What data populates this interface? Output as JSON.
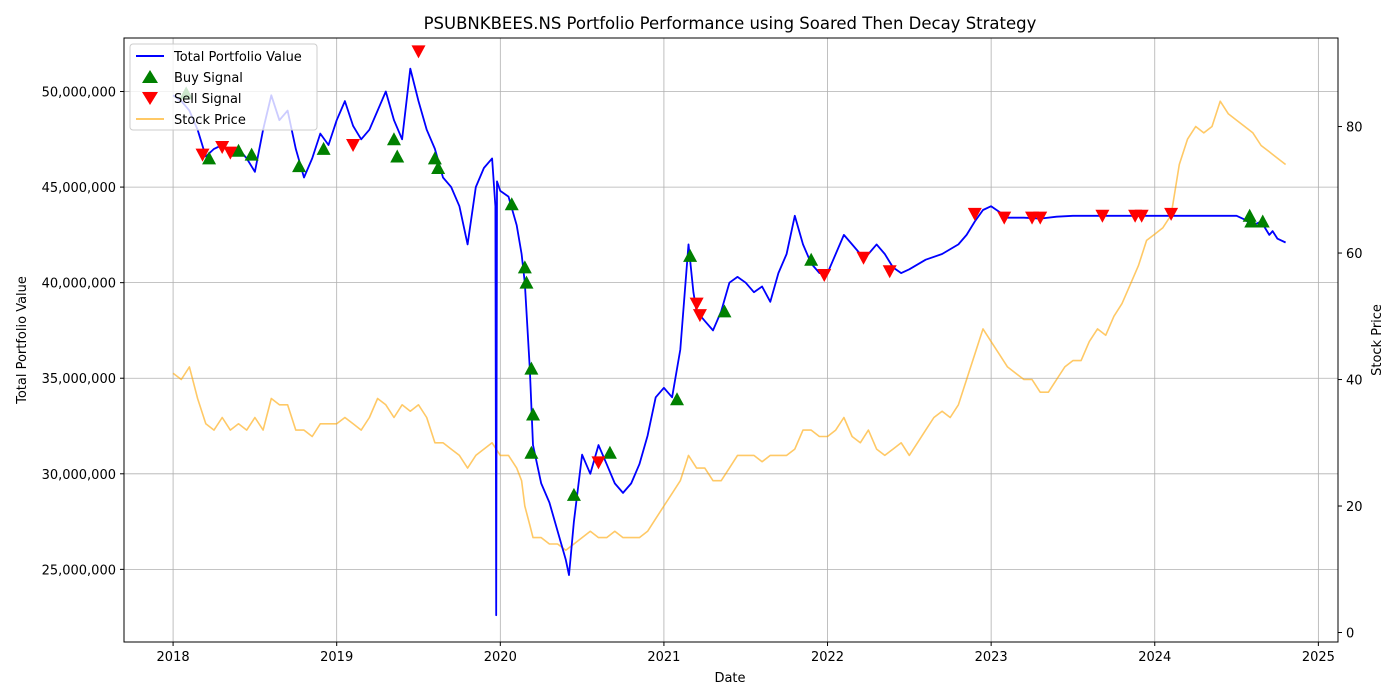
{
  "chart_data": {
    "type": "line",
    "title": "PSUBNKBEES.NS Portfolio Performance using Soared Then Decay Strategy",
    "xlabel": "Date",
    "ylabel_left": "Total Portfolio Value",
    "ylabel_right": "Stock Price",
    "x_ticks": [
      "2018",
      "2019",
      "2020",
      "2021",
      "2022",
      "2023",
      "2024",
      "2025"
    ],
    "x_range": [
      2017.7,
      2025.12
    ],
    "y_left_range": [
      21200000,
      52800000
    ],
    "y_left_ticks": [
      25000000,
      30000000,
      35000000,
      40000000,
      45000000,
      50000000
    ],
    "y_left_tick_labels": [
      "25,000,000",
      "30,000,000",
      "35,000,000",
      "40,000,000",
      "45,000,000",
      "50,000,000"
    ],
    "y_right_range": [
      -1.5,
      94
    ],
    "y_right_ticks": [
      0,
      20,
      40,
      60,
      80
    ],
    "y_right_tick_labels": [
      "0",
      "20",
      "40",
      "60",
      "80"
    ],
    "grid": true,
    "legend_position": "top-left",
    "legend": [
      {
        "label": "Total Portfolio Value",
        "kind": "line",
        "color": "#0000ff"
      },
      {
        "label": "Buy Signal",
        "kind": "triangle-up",
        "color": "#008000"
      },
      {
        "label": "Sell Signal",
        "kind": "triangle-down",
        "color": "#ff0000"
      },
      {
        "label": "Stock Price",
        "kind": "line",
        "color": "#ffa500"
      }
    ],
    "series": [
      {
        "name": "Total Portfolio Value",
        "axis": "left",
        "color": "#0000ff",
        "x": [
          2018.0,
          2018.05,
          2018.1,
          2018.15,
          2018.2,
          2018.25,
          2018.3,
          2018.35,
          2018.4,
          2018.45,
          2018.5,
          2018.55,
          2018.6,
          2018.65,
          2018.7,
          2018.75,
          2018.8,
          2018.85,
          2018.9,
          2018.95,
          2019.0,
          2019.05,
          2019.1,
          2019.15,
          2019.2,
          2019.25,
          2019.3,
          2019.35,
          2019.4,
          2019.45,
          2019.5,
          2019.55,
          2019.6,
          2019.65,
          2019.7,
          2019.75,
          2019.8,
          2019.85,
          2019.9,
          2019.95,
          2019.97,
          2019.975,
          2019.98,
          2020.0,
          2020.05,
          2020.1,
          2020.13,
          2020.15,
          2020.18,
          2020.2,
          2020.25,
          2020.3,
          2020.35,
          2020.4,
          2020.42,
          2020.45,
          2020.5,
          2020.55,
          2020.6,
          2020.65,
          2020.7,
          2020.75,
          2020.8,
          2020.85,
          2020.9,
          2020.95,
          2021.0,
          2021.05,
          2021.1,
          2021.15,
          2021.18,
          2021.2,
          2021.25,
          2021.3,
          2021.35,
          2021.4,
          2021.45,
          2021.5,
          2021.55,
          2021.6,
          2021.65,
          2021.7,
          2021.75,
          2021.8,
          2021.85,
          2021.9,
          2021.95,
          2022.0,
          2022.05,
          2022.1,
          2022.15,
          2022.2,
          2022.25,
          2022.3,
          2022.35,
          2022.4,
          2022.45,
          2022.5,
          2022.6,
          2022.7,
          2022.8,
          2022.85,
          2022.9,
          2022.95,
          2023.0,
          2023.05,
          2023.1,
          2023.2,
          2023.3,
          2023.4,
          2023.5,
          2023.6,
          2023.7,
          2023.8,
          2023.9,
          2024.0,
          2024.1,
          2024.2,
          2024.3,
          2024.4,
          2024.5,
          2024.55,
          2024.6,
          2024.65,
          2024.7,
          2024.72,
          2024.75,
          2024.8
        ],
        "values": [
          49800000,
          49500000,
          49000000,
          48000000,
          46600000,
          47000000,
          47200000,
          46800000,
          47000000,
          46500000,
          45800000,
          48000000,
          49800000,
          48500000,
          49000000,
          47000000,
          45500000,
          46500000,
          47800000,
          47200000,
          48500000,
          49500000,
          48200000,
          47500000,
          48000000,
          49000000,
          50000000,
          48500000,
          47500000,
          51200000,
          49500000,
          48000000,
          47000000,
          45500000,
          45000000,
          44000000,
          42000000,
          45000000,
          46000000,
          46500000,
          44000000,
          22600000,
          45300000,
          44800000,
          44500000,
          43000000,
          41500000,
          40000000,
          35500000,
          31500000,
          29500000,
          28500000,
          27000000,
          25500000,
          24700000,
          27500000,
          31000000,
          30000000,
          31500000,
          30500000,
          29500000,
          29000000,
          29500000,
          30500000,
          32000000,
          34000000,
          34500000,
          34000000,
          36500000,
          42000000,
          39500000,
          38500000,
          38000000,
          37500000,
          38500000,
          40000000,
          40300000,
          40000000,
          39500000,
          39800000,
          39000000,
          40500000,
          41500000,
          43500000,
          42000000,
          41000000,
          40500000,
          40500000,
          41500000,
          42500000,
          42000000,
          41500000,
          41500000,
          42000000,
          41500000,
          40800000,
          40500000,
          40700000,
          41200000,
          41500000,
          42000000,
          42500000,
          43200000,
          43800000,
          44000000,
          43700000,
          43400000,
          43400000,
          43350000,
          43450000,
          43500000,
          43500000,
          43500000,
          43500000,
          43500000,
          43500000,
          43500000,
          43500000,
          43500000,
          43500000,
          43500000,
          43300000,
          43000000,
          43200000,
          42500000,
          42700000,
          42300000,
          42100000
        ]
      },
      {
        "name": "Stock Price",
        "axis": "right",
        "color": "#ffa500",
        "x": [
          2018.0,
          2018.05,
          2018.1,
          2018.15,
          2018.2,
          2018.25,
          2018.3,
          2018.35,
          2018.4,
          2018.45,
          2018.5,
          2018.55,
          2018.6,
          2018.65,
          2018.7,
          2018.75,
          2018.8,
          2018.85,
          2018.9,
          2018.95,
          2019.0,
          2019.05,
          2019.1,
          2019.15,
          2019.2,
          2019.25,
          2019.3,
          2019.35,
          2019.4,
          2019.45,
          2019.5,
          2019.55,
          2019.6,
          2019.65,
          2019.7,
          2019.75,
          2019.8,
          2019.85,
          2019.9,
          2019.95,
          2020.0,
          2020.05,
          2020.1,
          2020.13,
          2020.15,
          2020.18,
          2020.2,
          2020.25,
          2020.3,
          2020.35,
          2020.4,
          2020.45,
          2020.5,
          2020.55,
          2020.6,
          2020.65,
          2020.7,
          2020.75,
          2020.8,
          2020.85,
          2020.9,
          2020.95,
          2021.0,
          2021.05,
          2021.1,
          2021.15,
          2021.2,
          2021.25,
          2021.3,
          2021.35,
          2021.4,
          2021.45,
          2021.5,
          2021.55,
          2021.6,
          2021.65,
          2021.7,
          2021.75,
          2021.8,
          2021.85,
          2021.9,
          2021.95,
          2022.0,
          2022.05,
          2022.1,
          2022.15,
          2022.2,
          2022.25,
          2022.3,
          2022.35,
          2022.4,
          2022.45,
          2022.5,
          2022.55,
          2022.6,
          2022.65,
          2022.7,
          2022.75,
          2022.8,
          2022.85,
          2022.9,
          2022.95,
          2023.0,
          2023.05,
          2023.1,
          2023.15,
          2023.2,
          2023.25,
          2023.3,
          2023.35,
          2023.4,
          2023.45,
          2023.5,
          2023.55,
          2023.6,
          2023.65,
          2023.7,
          2023.75,
          2023.8,
          2023.85,
          2023.9,
          2023.95,
          2024.0,
          2024.05,
          2024.1,
          2024.15,
          2024.2,
          2024.25,
          2024.3,
          2024.35,
          2024.4,
          2024.45,
          2024.5,
          2024.55,
          2024.6,
          2024.65,
          2024.7,
          2024.75,
          2024.8
        ],
        "values": [
          41,
          40,
          42,
          37,
          33,
          32,
          34,
          32,
          33,
          32,
          34,
          32,
          37,
          36,
          36,
          32,
          32,
          31,
          33,
          33,
          33,
          34,
          33,
          32,
          34,
          37,
          36,
          34,
          36,
          35,
          36,
          34,
          30,
          30,
          29,
          28,
          26,
          28,
          29,
          30,
          28,
          28,
          26,
          24,
          20,
          17,
          15,
          15,
          14,
          14,
          13,
          14,
          15,
          16,
          15,
          15,
          16,
          15,
          15,
          15,
          16,
          18,
          20,
          22,
          24,
          28,
          26,
          26,
          24,
          24,
          26,
          28,
          28,
          28,
          27,
          28,
          28,
          28,
          29,
          32,
          32,
          31,
          31,
          32,
          34,
          31,
          30,
          32,
          29,
          28,
          29,
          30,
          28,
          30,
          32,
          34,
          35,
          34,
          36,
          40,
          44,
          48,
          46,
          44,
          42,
          41,
          40,
          40,
          38,
          38,
          40,
          42,
          43,
          43,
          46,
          48,
          47,
          50,
          52,
          55,
          58,
          62,
          63,
          64,
          66,
          74,
          78,
          80,
          79,
          80,
          84,
          82,
          81,
          80,
          79,
          77,
          76,
          75,
          74
        ]
      }
    ],
    "buy_signals": {
      "name": "Buy Signal",
      "color": "#008000",
      "x": [
        2018.08,
        2018.22,
        2018.4,
        2018.48,
        2018.77,
        2018.92,
        2019.35,
        2019.37,
        2019.6,
        2019.62,
        2020.07,
        2020.15,
        2020.16,
        2020.19,
        2020.19,
        2020.2,
        2020.45,
        2020.67,
        2021.08,
        2021.16,
        2021.37,
        2021.9,
        2024.58,
        2024.59,
        2024.66
      ],
      "values": [
        49900000,
        46500000,
        46900000,
        46700000,
        46100000,
        47000000,
        47500000,
        46600000,
        46500000,
        46000000,
        44100000,
        40800000,
        40000000,
        35500000,
        31100000,
        33100000,
        28900000,
        31100000,
        33900000,
        41400000,
        38500000,
        41200000,
        43500000,
        43200000,
        43200000
      ]
    },
    "sell_signals": {
      "name": "Sell Signal",
      "color": "#ff0000",
      "x": [
        2018.18,
        2018.3,
        2018.35,
        2019.1,
        2019.5,
        2020.6,
        2021.2,
        2021.22,
        2021.98,
        2022.22,
        2022.38,
        2022.9,
        2023.08,
        2023.25,
        2023.3,
        2023.68,
        2023.88,
        2023.92,
        2024.1
      ],
      "values": [
        46700000,
        47100000,
        46800000,
        47200000,
        52100000,
        30600000,
        38900000,
        38300000,
        40400000,
        41300000,
        40600000,
        43600000,
        43400000,
        43400000,
        43400000,
        43500000,
        43500000,
        43500000,
        43600000
      ]
    }
  }
}
